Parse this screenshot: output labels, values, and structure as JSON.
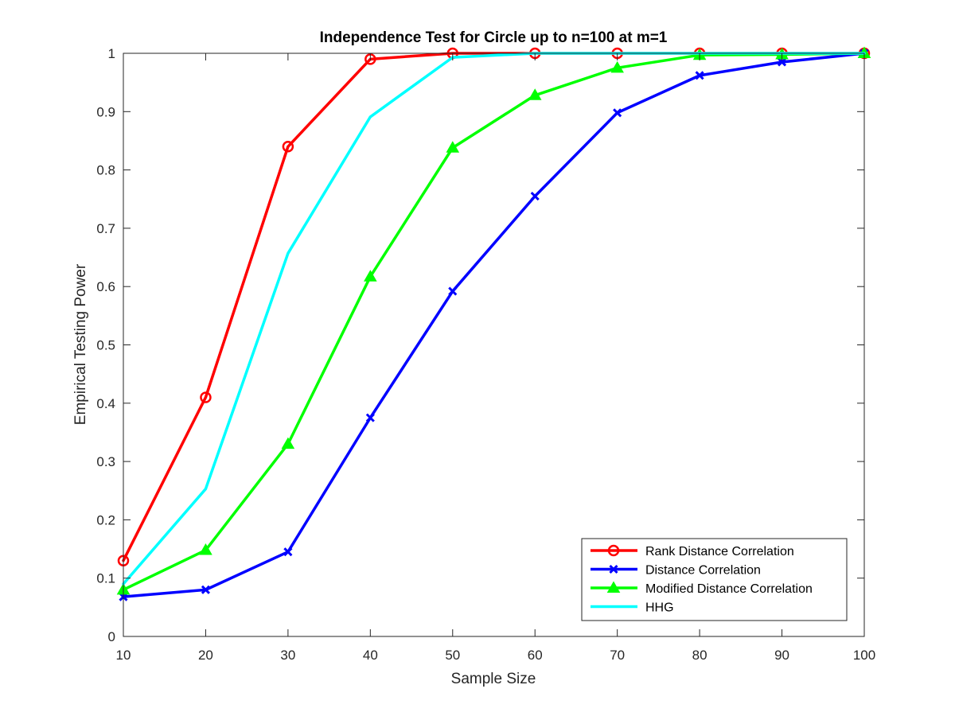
{
  "chart_data": {
    "type": "line",
    "title": "Independence Test for Circle up to n=100 at m=1",
    "xlabel": "Sample Size",
    "ylabel": "Empirical Testing Power",
    "xlim": [
      10,
      100
    ],
    "ylim": [
      0,
      1
    ],
    "xticks": [
      10,
      20,
      30,
      40,
      50,
      60,
      70,
      80,
      90,
      100
    ],
    "yticks": [
      0,
      0.1,
      0.2,
      0.3,
      0.4,
      0.5,
      0.6,
      0.7,
      0.8,
      0.9,
      1
    ],
    "ytick_labels": [
      "0",
      "0.1",
      "0.2",
      "0.3",
      "0.4",
      "0.5",
      "0.6",
      "0.7",
      "0.8",
      "0.9",
      "1"
    ],
    "grid": false,
    "legend_position": "bottom-right",
    "x": [
      10,
      20,
      30,
      40,
      50,
      60,
      70,
      80,
      90,
      100
    ],
    "series": [
      {
        "name": "Rank Distance Correlation",
        "color": "#ff0000",
        "marker": "circle",
        "values": [
          0.13,
          0.41,
          0.84,
          0.99,
          1.0,
          1.0,
          1.0,
          1.0,
          1.0,
          1.0
        ]
      },
      {
        "name": "Distance Correlation",
        "color": "#0000ff",
        "marker": "x",
        "values": [
          0.068,
          0.08,
          0.145,
          0.375,
          0.592,
          0.755,
          0.898,
          0.962,
          0.985,
          1.0
        ]
      },
      {
        "name": "Modified Distance Correlation",
        "color": "#00ff00",
        "marker": "triangle",
        "values": [
          0.08,
          0.148,
          0.33,
          0.617,
          0.838,
          0.928,
          0.975,
          0.997,
          0.998,
          1.0
        ]
      },
      {
        "name": "HHG",
        "color": "#00ffff",
        "marker": "none",
        "values": [
          0.09,
          0.253,
          0.657,
          0.891,
          0.993,
          1.0,
          1.0,
          1.0,
          1.0,
          1.0
        ]
      }
    ]
  }
}
